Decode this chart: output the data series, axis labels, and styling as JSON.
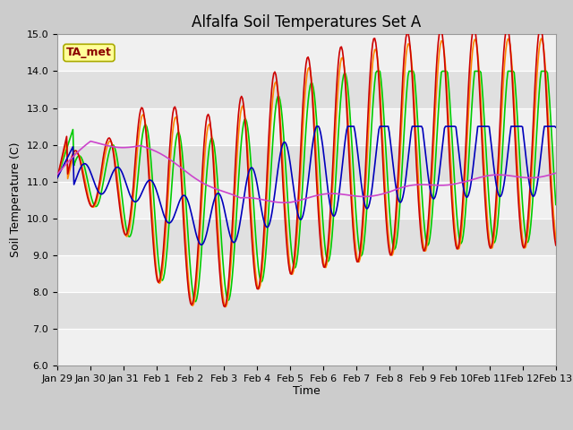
{
  "title": "Alfalfa Soil Temperatures Set A",
  "xlabel": "Time",
  "ylabel": "Soil Temperature (C)",
  "ylim": [
    6.0,
    15.0
  ],
  "yticks": [
    6.0,
    7.0,
    8.0,
    9.0,
    10.0,
    11.0,
    12.0,
    13.0,
    14.0,
    15.0
  ],
  "colors": {
    "-2cm": "#cc0000",
    "-4cm": "#ff8800",
    "-8cm": "#00cc00",
    "-16cm": "#0000bb",
    "-32cm": "#cc44cc"
  },
  "legend_label": "TA_met",
  "x_tick_labels": [
    "Jan 29",
    "Jan 30",
    "Jan 31",
    "Feb 1",
    "Feb 2",
    "Feb 3",
    "Feb 4",
    "Feb 5",
    "Feb 6",
    "Feb 7",
    "Feb 8",
    "Feb 9",
    "Feb 10",
    "Feb 11",
    "Feb 12",
    "Feb 13"
  ],
  "title_fontsize": 12,
  "axis_fontsize": 9,
  "tick_fontsize": 8,
  "legend_fontsize": 9
}
